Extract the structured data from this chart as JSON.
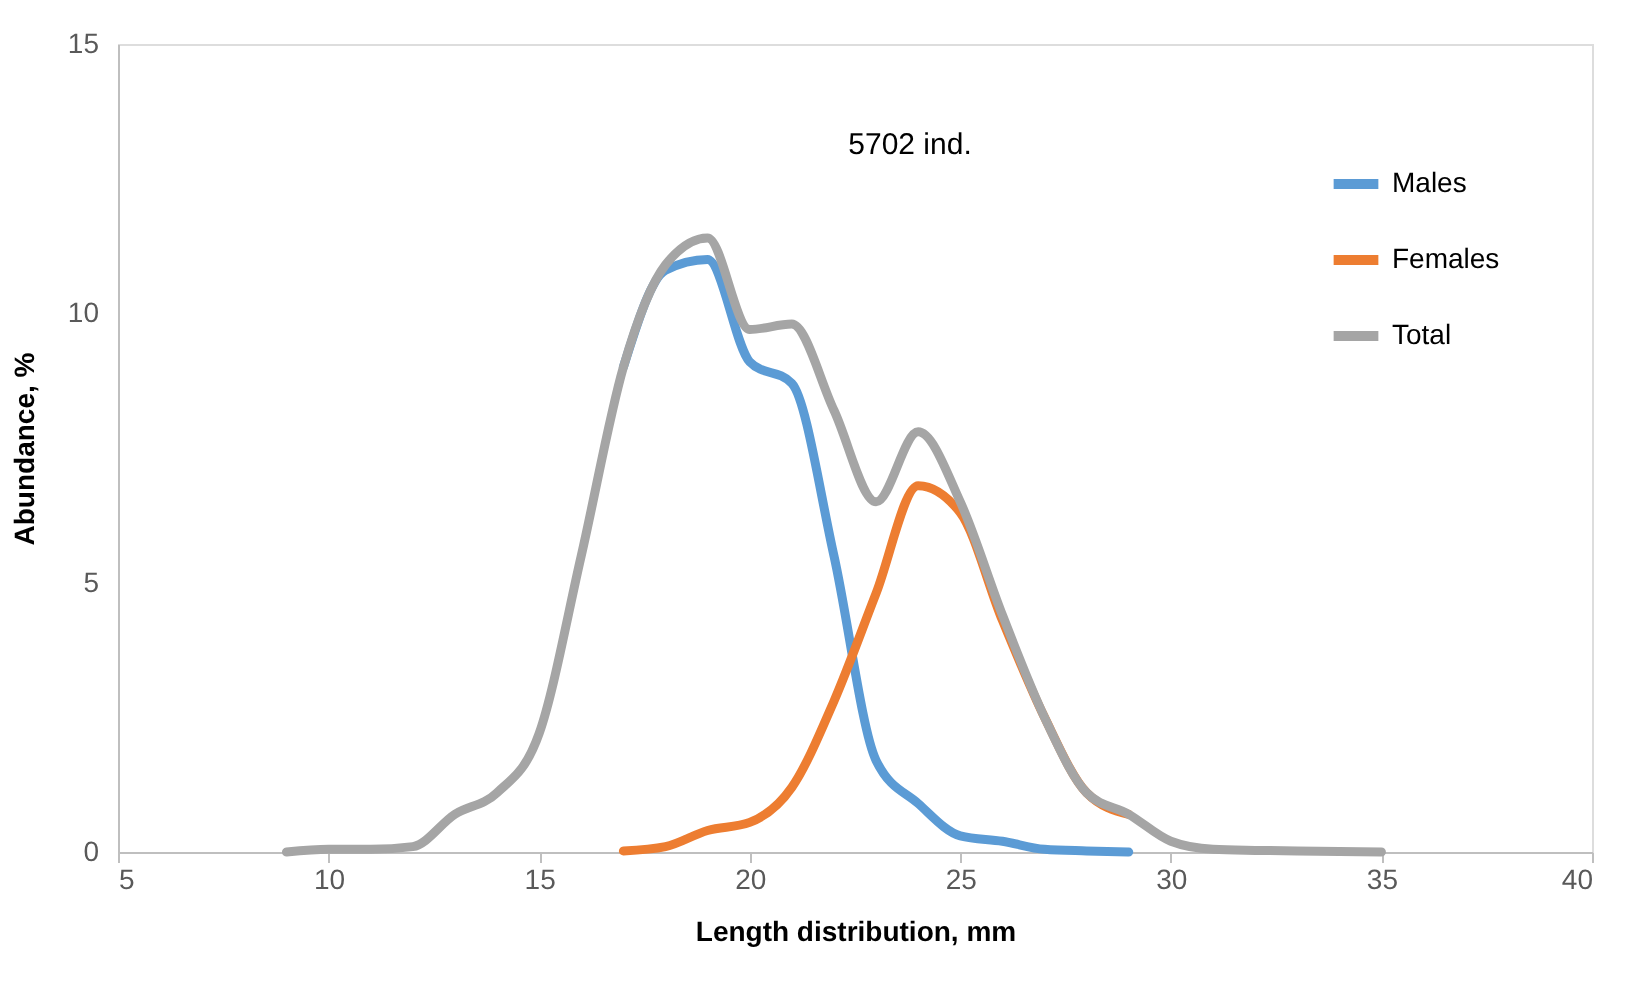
{
  "chart_data": {
    "type": "line",
    "xlabel": "Length distribution,  mm",
    "ylabel": "Abundance, %",
    "annotations": [
      "5702 ind."
    ],
    "xlim": [
      5,
      40
    ],
    "xticks": [
      5,
      10,
      15,
      20,
      25,
      30,
      35,
      40
    ],
    "ylim": [
      0,
      15
    ],
    "yticks": [
      0,
      5,
      10,
      15
    ],
    "grid": false,
    "legend": "top right",
    "line_style": "solid",
    "marker": "none",
    "series": [
      {
        "name": "Males",
        "color": "#5b9bd5",
        "x": [
          17,
          18,
          19,
          20,
          21,
          22,
          23,
          24,
          25,
          26,
          27,
          28,
          29
        ],
        "values": [
          9.0,
          10.8,
          11.0,
          9.1,
          8.7,
          5.5,
          1.7,
          0.9,
          0.3,
          0.2,
          0.05,
          0.02,
          0
        ]
      },
      {
        "name": "Females",
        "color": "#ed7d31",
        "x": [
          17,
          18,
          19,
          20,
          21,
          22,
          23,
          24,
          25,
          26,
          27,
          28,
          29
        ],
        "values": [
          0.02,
          0.1,
          0.4,
          0.55,
          1.2,
          2.8,
          4.8,
          6.8,
          6.3,
          4.3,
          2.5,
          1.1,
          0.7
        ]
      },
      {
        "name": "Total",
        "color": "#a5a5a5",
        "x": [
          9,
          10,
          11,
          12,
          13,
          14,
          15,
          16,
          17,
          18,
          19,
          20,
          21,
          22,
          23,
          24,
          25,
          26,
          27,
          28,
          29,
          30,
          31,
          32,
          33,
          34,
          35
        ],
        "values": [
          0,
          0.05,
          0.05,
          0.1,
          0.7,
          1.1,
          2.2,
          5.5,
          9.0,
          10.9,
          11.4,
          9.7,
          9.8,
          8.2,
          6.5,
          7.8,
          6.5,
          4.4,
          2.5,
          1.1,
          0.7,
          0.2,
          0.05,
          0.03,
          0.02,
          0.01,
          0
        ]
      }
    ]
  }
}
